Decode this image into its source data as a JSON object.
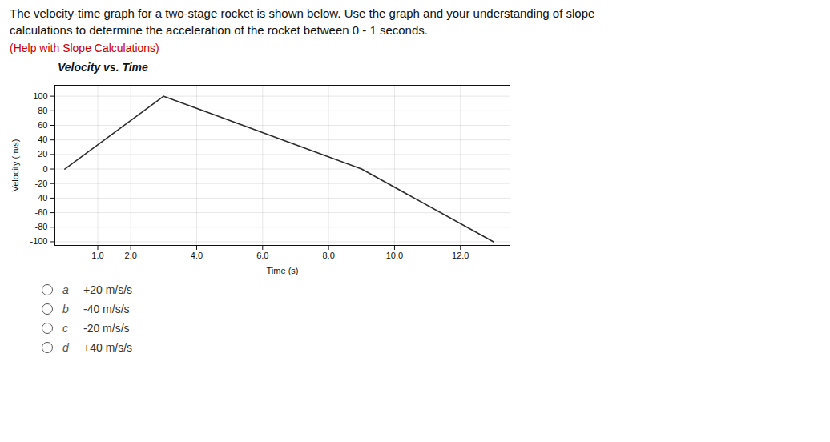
{
  "question": "The velocity-time graph for a two-stage rocket is shown below. Use the graph and your understanding of slope\ncalculations to determine the acceleration of the rocket between 0 - 1 seconds.",
  "help_text": "(Help with Slope Calculations)",
  "choices": [
    {
      "label": "a",
      "text": "+20 m/s/s"
    },
    {
      "label": "b",
      "text": "-40 m/s/s"
    },
    {
      "label": "c",
      "text": "-20 m/s/s"
    },
    {
      "label": "d",
      "text": "+40 m/s/s"
    }
  ],
  "chart_data": {
    "type": "line",
    "title": "Velocity vs. Time",
    "xlabel": "Time (s)",
    "ylabel": "Velocity (m/s)",
    "x": [
      0,
      3,
      9,
      13
    ],
    "values": [
      0,
      100,
      0,
      -100
    ],
    "color": "#2c2c2c",
    "xlim": [
      -0.3,
      13.5
    ],
    "ylim": [
      -105,
      115
    ],
    "xticks": [
      {
        "value": 1,
        "label": "1.0"
      },
      {
        "value": 2,
        "label": "2.0"
      },
      {
        "value": 4,
        "label": "4.0"
      },
      {
        "value": 6,
        "label": "6.0"
      },
      {
        "value": 8,
        "label": "8.0"
      },
      {
        "value": 10,
        "label": "10.0"
      },
      {
        "value": 12,
        "label": "12.0"
      }
    ],
    "yticks": [
      -100,
      -80,
      -60,
      -40,
      -20,
      0,
      20,
      40,
      60,
      80,
      100
    ],
    "grid": true
  }
}
